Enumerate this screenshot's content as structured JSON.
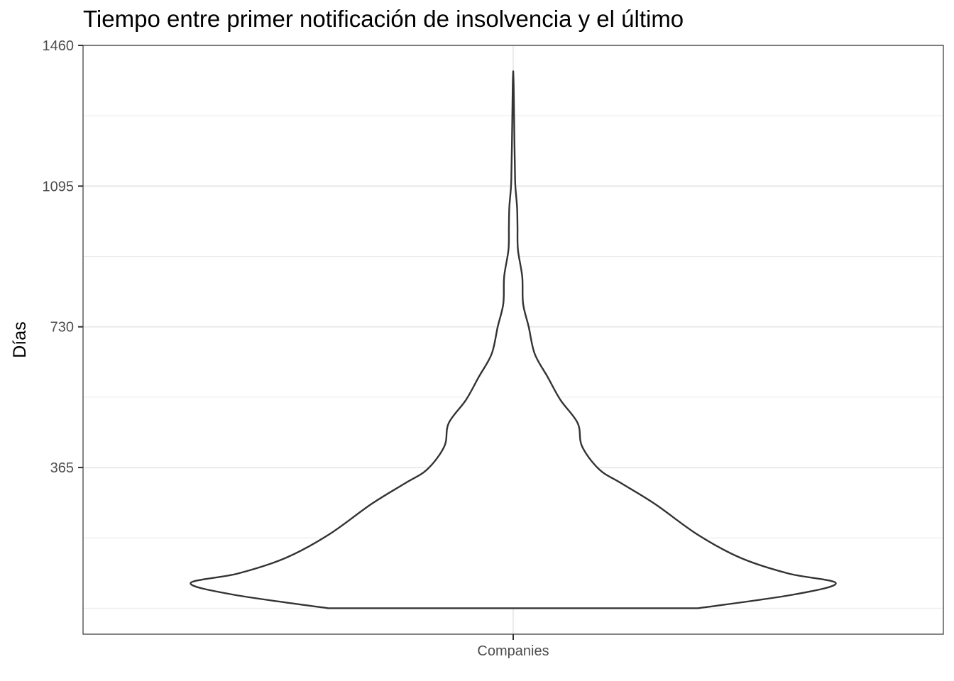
{
  "chart_data": {
    "type": "violin",
    "title": "Tiempo entre primer notificación de insolvencia y el último",
    "xlabel": "",
    "ylabel": "Días",
    "categories": [
      "Companies"
    ],
    "ylim": [
      -67,
      1460
    ],
    "y_ticks": [
      365,
      730,
      1095,
      1460
    ],
    "y_minor_ticks": [
      0,
      182.5,
      547.5,
      912.5,
      1277.5
    ],
    "grid": true,
    "legend": "none",
    "outline_color": "#333333",
    "grid_color": "#ebebeb",
    "density_profile": [
      {
        "y": 0,
        "half_width": 0.43
      },
      {
        "y": 35,
        "half_width": 0.65
      },
      {
        "y": 65,
        "half_width": 0.75
      },
      {
        "y": 90,
        "half_width": 0.64
      },
      {
        "y": 130,
        "half_width": 0.53
      },
      {
        "y": 190,
        "half_width": 0.43
      },
      {
        "y": 270,
        "half_width": 0.33
      },
      {
        "y": 325,
        "half_width": 0.25
      },
      {
        "y": 360,
        "half_width": 0.2
      },
      {
        "y": 420,
        "half_width": 0.16
      },
      {
        "y": 480,
        "half_width": 0.15
      },
      {
        "y": 540,
        "half_width": 0.11
      },
      {
        "y": 600,
        "half_width": 0.08
      },
      {
        "y": 660,
        "half_width": 0.05
      },
      {
        "y": 730,
        "half_width": 0.036
      },
      {
        "y": 790,
        "half_width": 0.023
      },
      {
        "y": 860,
        "half_width": 0.021
      },
      {
        "y": 930,
        "half_width": 0.011
      },
      {
        "y": 990,
        "half_width": 0.01
      },
      {
        "y": 1040,
        "half_width": 0.009
      },
      {
        "y": 1095,
        "half_width": 0.005
      },
      {
        "y": 1140,
        "half_width": 0.004
      },
      {
        "y": 1200,
        "half_width": 0.003
      },
      {
        "y": 1280,
        "half_width": 0.002
      },
      {
        "y": 1360,
        "half_width": 0.001
      },
      {
        "y": 1393,
        "half_width": 0
      }
    ]
  }
}
